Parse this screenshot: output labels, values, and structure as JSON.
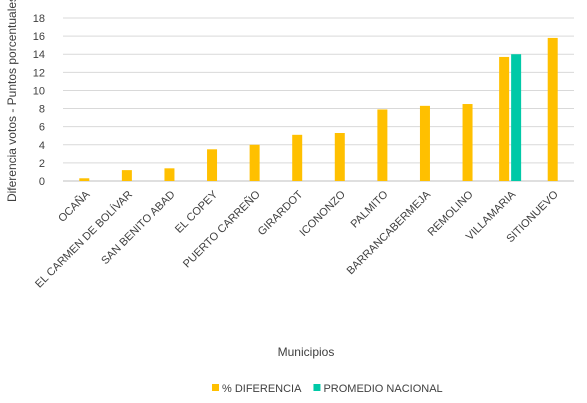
{
  "chart_data": {
    "type": "bar",
    "title": "",
    "xlabel": "Municipios",
    "ylabel": "Diferencia votos - Puntos porcentuales",
    "ylim": [
      0,
      18
    ],
    "yticks": [
      0,
      2,
      4,
      6,
      8,
      10,
      12,
      14,
      16,
      18
    ],
    "grid": true,
    "legend_position": "bottom",
    "categories": [
      "OCAÑA",
      "EL CARMEN DE BOLÍVAR",
      "SAN BENITO ABAD",
      "EL COPEY",
      "PUERTO CARREÑO",
      "GIRARDOT",
      "ICONONZO",
      "PALMITO",
      "BARRANCABERMEJA",
      "REMOLINO",
      "VILLAMARIA",
      "SITIONUEVO"
    ],
    "series": [
      {
        "name": "% DIFERENCIA",
        "color": "#FFC000",
        "values": [
          0.3,
          1.2,
          1.4,
          3.5,
          4.0,
          5.1,
          5.3,
          7.9,
          8.3,
          8.5,
          13.7,
          15.8
        ]
      },
      {
        "name": "PROMEDIO NACIONAL",
        "color": "#00C9A7",
        "values": [
          null,
          null,
          null,
          null,
          null,
          null,
          null,
          null,
          null,
          null,
          14.0,
          null
        ]
      }
    ]
  }
}
